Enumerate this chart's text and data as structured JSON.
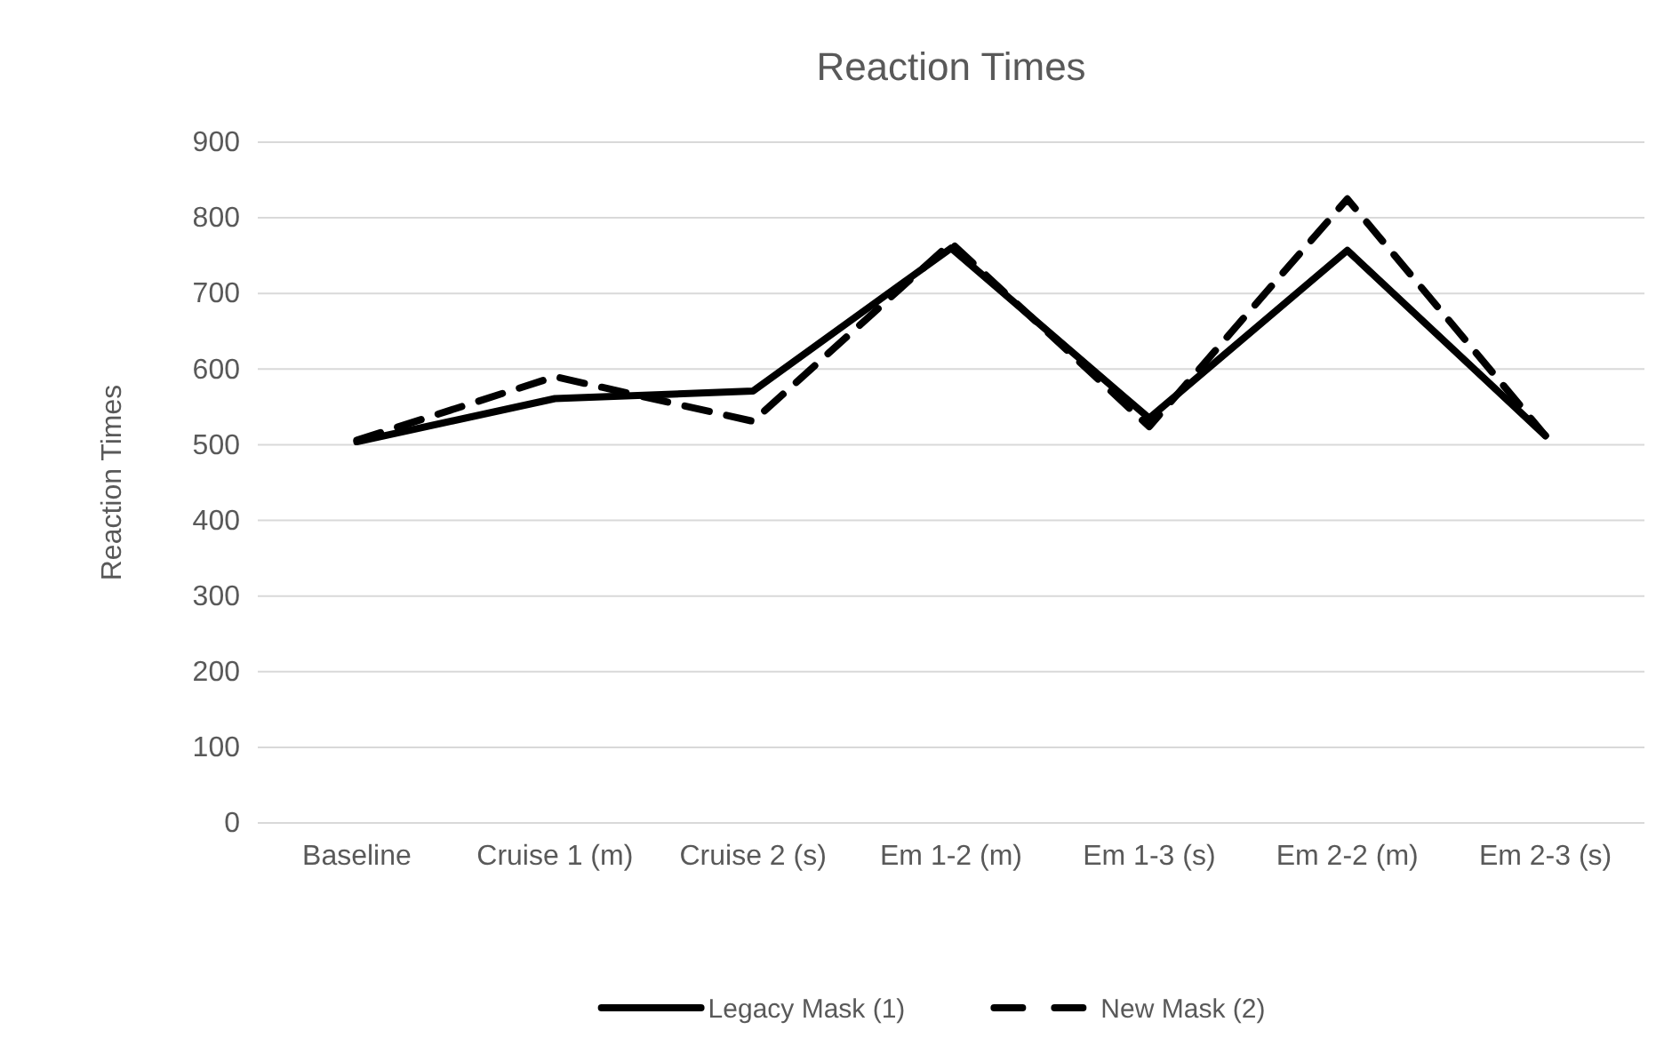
{
  "chart_data": {
    "type": "line",
    "title": "Reaction Times",
    "ylabel": "Reaction Times",
    "categories": [
      "Baseline",
      "Cruise 1 (m)",
      "Cruise 2 (s)",
      "Em 1-2 (m)",
      "Em 1-3 (s)",
      "Em 2-2 (m)",
      "Em 2-3 (s)"
    ],
    "series": [
      {
        "name": "Legacy Mask (1)",
        "color": "#000000",
        "line_style": "solid",
        "values": [
          504,
          561,
          571,
          760,
          535,
          757,
          512
        ]
      },
      {
        "name": "New Mask (2)",
        "color": "#000000",
        "line_style": "dashed",
        "values": [
          506,
          590,
          531,
          767,
          524,
          825,
          512
        ]
      }
    ],
    "ylim": [
      0,
      900
    ],
    "yticks": [
      0,
      100,
      200,
      300,
      400,
      500,
      600,
      700,
      800,
      900
    ],
    "grid": "y",
    "legend": "bottom",
    "marker": "none"
  }
}
